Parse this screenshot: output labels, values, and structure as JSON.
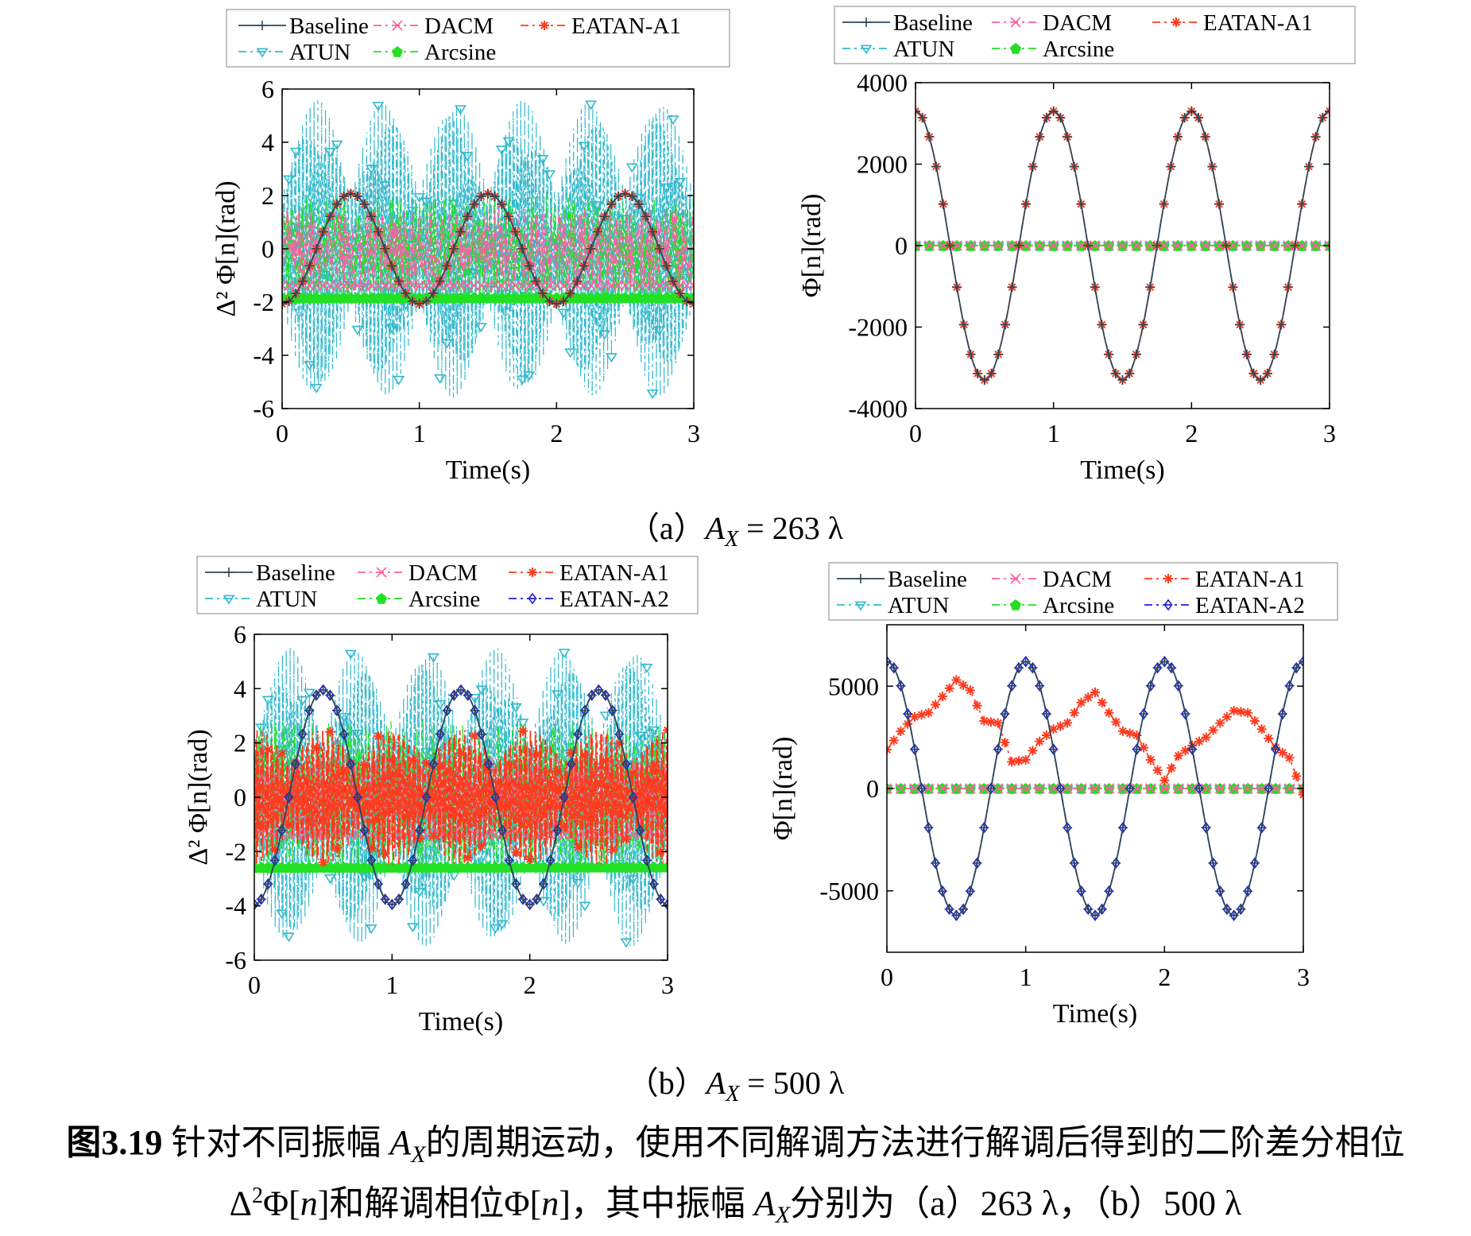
{
  "figure": {
    "number": "图3.19",
    "caption_line1": "针对不同振幅 A_X 的周期运动，使用不同解调方法进行解调后得到的二阶差分相位",
    "caption_line1_pre": "针对不同振幅",
    "caption_line1_var": "A",
    "caption_line1_sub": "X",
    "caption_line1_post": "的周期运动，使用不同解调方法进行解调后得到的二阶差分相位",
    "caption_line2_a": "Δ",
    "caption_line2_sup": "2",
    "caption_line2_b": "Φ[",
    "caption_line2_n": "n",
    "caption_line2_c": "]和解调相位Φ[",
    "caption_line2_n2": "n",
    "caption_line2_d": "]，其中振幅",
    "caption_line2_var": "A",
    "caption_line2_sub": "X",
    "caption_line2_e": "分别为（a）263 λ，（b）500 λ"
  },
  "subcaptions": [
    {
      "label": "（a）",
      "var": "A",
      "sub": "X",
      "rest": "= 263 λ"
    },
    {
      "label": "（b）",
      "var": "A",
      "sub": "X",
      "rest": "= 500 λ"
    }
  ],
  "colors": {
    "Baseline": "#2f4858",
    "DACM": "#ff5fa0",
    "EATAN-A1": "#ff3b1f",
    "ATUN": "#31b9cc",
    "Arcsine": "#22e022",
    "EATAN-A2": "#1f1fd6"
  },
  "chart_data": [
    {
      "id": "a-left",
      "type": "line",
      "xlabel": "Time(s)",
      "ylabel": "Δ² Φ[n](rad)",
      "xlim": [
        0,
        3
      ],
      "ylim": [
        -6,
        6
      ],
      "xticks": [
        "0",
        "1",
        "2",
        "3"
      ],
      "yticks": [
        "-6",
        "-4",
        "-2",
        "0",
        "2",
        "4",
        "6"
      ],
      "legend": [
        "Baseline",
        "DACM",
        "EATAN-A1",
        "ATUN",
        "Arcsine"
      ],
      "series": [
        {
          "name": "Baseline",
          "form": "cosine",
          "amplitude": 2.07,
          "phase_cycles": 0.5,
          "period_s": 1
        },
        {
          "name": "DACM",
          "form": "noise",
          "range": [
            -1.5,
            1.5
          ]
        },
        {
          "name": "EATAN-A1",
          "form": "cosine",
          "amplitude": 2.07,
          "phase_cycles": 0.5,
          "period_s": 1
        },
        {
          "name": "ATUN",
          "form": "oscillation",
          "range": [
            -5.6,
            5.6
          ]
        },
        {
          "name": "Arcsine",
          "form": "noise",
          "range": [
            -2,
            2
          ]
        }
      ]
    },
    {
      "id": "a-right",
      "type": "line",
      "xlabel": "Time(s)",
      "ylabel": "Φ[n](rad)",
      "xlim": [
        0,
        3
      ],
      "ylim": [
        -4000,
        4000
      ],
      "xticks": [
        "0",
        "1",
        "2",
        "3"
      ],
      "yticks": [
        "-4000",
        "-2000",
        "0",
        "2000",
        "4000"
      ],
      "legend": [
        "Baseline",
        "DACM",
        "EATAN-A1",
        "ATUN",
        "Arcsine"
      ],
      "series": [
        {
          "name": "Baseline",
          "form": "cosine",
          "amplitude": 3300,
          "period_s": 1
        },
        {
          "name": "DACM",
          "form": "constant",
          "value": 0
        },
        {
          "name": "EATAN-A1",
          "form": "cosine",
          "amplitude": 3300,
          "period_s": 1
        },
        {
          "name": "ATUN",
          "form": "constant",
          "value": 0
        },
        {
          "name": "Arcsine",
          "form": "constant",
          "value": 0
        }
      ]
    },
    {
      "id": "b-left",
      "type": "line",
      "xlabel": "Time(s)",
      "ylabel": "Δ² Φ[n](rad)",
      "xlim": [
        0,
        3
      ],
      "ylim": [
        -6,
        6
      ],
      "xticks": [
        "0",
        "1",
        "2",
        "3"
      ],
      "yticks": [
        "-6",
        "-4",
        "-2",
        "0",
        "2",
        "4",
        "6"
      ],
      "legend": [
        "Baseline",
        "DACM",
        "EATAN-A1",
        "ATUN",
        "Arcsine",
        "EATAN-A2"
      ],
      "series": [
        {
          "name": "Baseline",
          "form": "cosine",
          "amplitude": 3.95,
          "phase_cycles": 0.5,
          "period_s": 1
        },
        {
          "name": "DACM",
          "form": "noise",
          "range": [
            -1.5,
            1.5
          ]
        },
        {
          "name": "EATAN-A1",
          "form": "envelope",
          "range": [
            -2.5,
            2.5
          ]
        },
        {
          "name": "ATUN",
          "form": "oscillation",
          "range": [
            -5.5,
            5.5
          ]
        },
        {
          "name": "Arcsine",
          "form": "noise",
          "range": [
            -2.8,
            2.8
          ]
        },
        {
          "name": "EATAN-A2",
          "form": "cosine",
          "amplitude": 3.95,
          "phase_cycles": 0.5,
          "period_s": 1
        }
      ]
    },
    {
      "id": "b-right",
      "type": "line",
      "xlabel": "Time(s)",
      "ylabel": "Φ[n](rad)",
      "xlim": [
        0,
        3
      ],
      "ylim": [
        -8000,
        8000
      ],
      "xticks": [
        "0",
        "1",
        "2",
        "3"
      ],
      "yticks": [
        "-5000",
        "0",
        "5000"
      ],
      "legend": [
        "Baseline",
        "DACM",
        "EATAN-A1",
        "ATUN",
        "Arcsine",
        "EATAN-A2"
      ],
      "series": [
        {
          "name": "Baseline",
          "form": "cosine",
          "amplitude": 6200,
          "period_s": 1
        },
        {
          "name": "DACM",
          "form": "constant",
          "value": 0
        },
        {
          "name": "EATAN-A1",
          "form": "points",
          "x": [
            0,
            0.1,
            0.2,
            0.3,
            0.4,
            0.5,
            0.6,
            0.7,
            0.8,
            0.9,
            1.0,
            1.1,
            1.2,
            1.3,
            1.4,
            1.5,
            1.6,
            1.7,
            1.8,
            1.9,
            2.0,
            2.1,
            2.2,
            2.3,
            2.4,
            2.5,
            2.6,
            2.7,
            2.8,
            2.9,
            3.0
          ],
          "y": [
            1900,
            2800,
            3500,
            3700,
            4500,
            5300,
            4800,
            3300,
            3200,
            1300,
            1400,
            2300,
            2900,
            3200,
            4200,
            4700,
            3700,
            2800,
            2600,
            1400,
            400,
            1600,
            2100,
            2500,
            3200,
            3800,
            3700,
            2900,
            2000,
            1500,
            -300
          ]
        },
        {
          "name": "ATUN",
          "form": "constant",
          "value": 0
        },
        {
          "name": "Arcsine",
          "form": "constant",
          "value": 0
        },
        {
          "name": "EATAN-A2",
          "form": "cosine",
          "amplitude": 6200,
          "period_s": 1
        }
      ]
    }
  ]
}
